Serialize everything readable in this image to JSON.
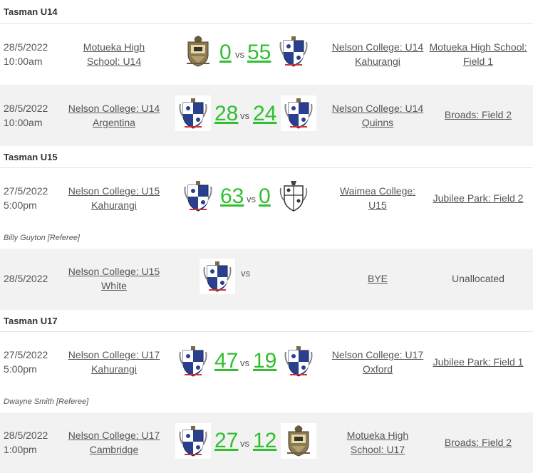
{
  "groups": [
    {
      "title": "Tasman U14",
      "fixtures": [
        {
          "date": "28/5/2022",
          "time": "10:00am",
          "home_line1": "Motueka High",
          "home_line2": "School: U14",
          "home_score": "0",
          "vs": "vs",
          "away_score": "55",
          "away_line1": "Nelson College: U14",
          "away_line2": "Kahurangi",
          "venue_line1": "Motueka High School:",
          "venue_line2": "Field 1"
        },
        {
          "date": "28/5/2022",
          "time": "10:00am",
          "home_line1": "Nelson College: U14",
          "home_line2": "Argentina",
          "home_score": "28",
          "vs": "vs",
          "away_score": "24",
          "away_line1": "Nelson College: U14",
          "away_line2": "Quinns",
          "venue_line1": "Broads: Field 2"
        }
      ]
    },
    {
      "title": "Tasman U15",
      "fixtures": [
        {
          "date": "27/5/2022",
          "time": "5:00pm",
          "home_line1": "Nelson College: U15",
          "home_line2": "Kahurangi",
          "home_score": "63",
          "vs": "vs",
          "away_score": "0",
          "away_line1": "Waimea College:",
          "away_line2": "U15",
          "venue_line1": "Jubilee Park: Field 2",
          "referee": "Billy Guyton [Referee]"
        },
        {
          "date": "28/5/2022",
          "home_line1": "Nelson College: U15",
          "home_line2": "White",
          "vs": "vs",
          "away_line1": "BYE",
          "venue_line1": "Unallocated"
        }
      ]
    },
    {
      "title": "Tasman U17",
      "fixtures": [
        {
          "date": "27/5/2022",
          "time": "5:00pm",
          "home_line1": "Nelson College: U17",
          "home_line2": "Kahurangi",
          "home_score": "47",
          "vs": "vs",
          "away_score": "19",
          "away_line1": "Nelson College: U17",
          "away_line2": "Oxford",
          "venue_line1": "Jubilee Park: Field 1",
          "referee": "Dwayne Smith [Referee]"
        },
        {
          "date": "28/5/2022",
          "time": "1:00pm",
          "home_line1": "Nelson College: U17",
          "home_line2": "Cambridge",
          "home_score": "27",
          "vs": "vs",
          "away_score": "12",
          "away_line1": "Motueka High",
          "away_line2": "School: U17",
          "venue_line1": "Broads: Field 2"
        }
      ]
    }
  ],
  "colors": {
    "score": "#2fbf2f",
    "alt_row": "#f2f2f2",
    "text": "#555555"
  },
  "icons": {
    "nelson": "nelson-college-crest-icon",
    "motueka": "motueka-high-crest-icon",
    "waimea": "waimea-college-crest-icon"
  }
}
